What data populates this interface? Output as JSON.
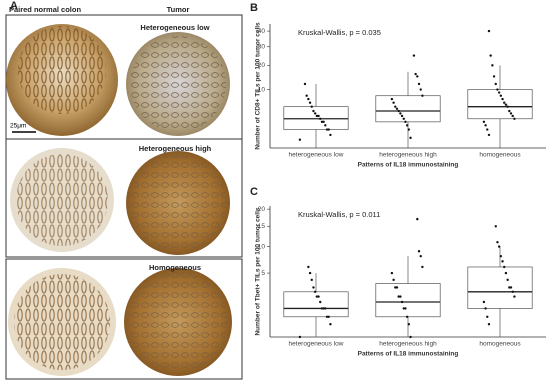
{
  "panel_a": {
    "label": "A",
    "column_labels": [
      "Paired normal colon",
      "Tumor"
    ],
    "row_labels": [
      "Heterogeneous low",
      "Heterogeneous high",
      "Homogeneous"
    ],
    "scale_bar": "25μm"
  },
  "chart_data": [
    {
      "type": "box",
      "panel_label": "B",
      "annotation": "Kruskal-Wallis, p = 0.035",
      "ylabel": "Number of CD8+ TILs per 100 tumor cells",
      "xlabel": "Patterns of IL18 immunostaining",
      "categories": [
        "heterogeneous low",
        "heterogeneous high",
        "homogeneous"
      ],
      "yscale": "sqrt",
      "ylim": [
        0,
        45
      ],
      "yticks": [
        10,
        20,
        30,
        40
      ],
      "boxes": [
        {
          "min": 0,
          "q1": 1,
          "median": 2.5,
          "q3": 5,
          "max": 12
        },
        {
          "min": 0,
          "q1": 2,
          "median": 4,
          "q3": 8,
          "max": 17
        },
        {
          "min": 0,
          "q1": 2.5,
          "median": 5,
          "q3": 10,
          "max": 20
        }
      ],
      "points": [
        [
          0.2,
          0.5,
          1,
          1,
          1.5,
          2,
          2,
          2.5,
          3,
          3,
          3.5,
          4,
          5,
          6,
          7,
          8,
          12
        ],
        [
          0.3,
          1,
          1.5,
          2,
          2.5,
          3,
          3.5,
          4,
          4.5,
          5,
          6,
          7,
          8,
          10,
          12,
          15,
          16,
          25
        ],
        [
          0.5,
          1,
          1.5,
          2,
          2.5,
          3,
          3.5,
          4,
          5,
          5.5,
          6,
          7,
          8,
          9,
          10,
          12,
          15,
          20,
          25,
          40
        ]
      ]
    },
    {
      "type": "box",
      "panel_label": "C",
      "annotation": "Kruskal-Wallis, p = 0.011",
      "ylabel": "Number of Tbet+ TILs per 100 tumor cells",
      "xlabel": "Patterns of IL18 immunostaining",
      "categories": [
        "heterogeneous low",
        "heterogeneous high",
        "homogeneous"
      ],
      "yscale": "sqrt",
      "ylim": [
        0,
        21
      ],
      "yticks": [
        5,
        10,
        15,
        20
      ],
      "boxes": [
        {
          "min": 0,
          "q1": 0.5,
          "median": 1,
          "q3": 2.5,
          "max": 5
        },
        {
          "min": 0,
          "q1": 0.5,
          "median": 1.5,
          "q3": 3.5,
          "max": 8
        },
        {
          "min": 0,
          "q1": 1,
          "median": 2.5,
          "q3": 6,
          "max": 10
        }
      ],
      "points": [
        [
          0,
          0.2,
          0.5,
          0.5,
          1,
          1,
          1,
          1.5,
          2,
          2,
          2.5,
          3,
          4,
          5,
          6
        ],
        [
          0,
          0.2,
          0.5,
          1,
          1,
          1.5,
          2,
          2,
          3,
          3,
          4,
          5,
          6,
          8,
          9,
          17
        ],
        [
          0.2,
          0.5,
          1,
          1.5,
          2,
          2.5,
          3,
          3,
          4,
          5,
          6,
          7,
          8,
          10,
          11,
          15
        ]
      ]
    }
  ]
}
